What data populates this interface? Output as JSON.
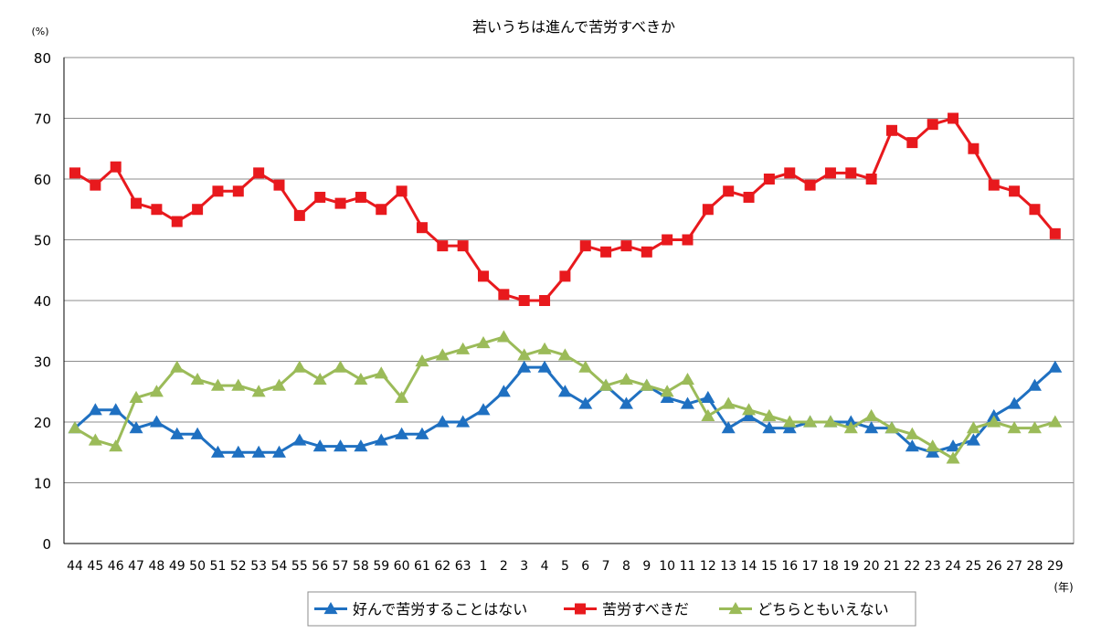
{
  "chart_data": {
    "type": "line",
    "title": "若いうちは進んで苦労すべきか",
    "y_unit_label": "(%)",
    "x_unit_label": "(年)",
    "xlabel": "",
    "ylabel": "",
    "ylim": [
      0,
      80
    ],
    "yticks": [
      0,
      10,
      20,
      30,
      40,
      50,
      60,
      70,
      80
    ],
    "grid": true,
    "legend_position": "bottom",
    "categories": [
      "44",
      "45",
      "46",
      "47",
      "48",
      "49",
      "50",
      "51",
      "52",
      "53",
      "54",
      "55",
      "56",
      "57",
      "58",
      "59",
      "60",
      "61",
      "62",
      "63",
      "1",
      "2",
      "3",
      "4",
      "5",
      "6",
      "7",
      "8",
      "9",
      "10",
      "11",
      "12",
      "13",
      "14",
      "15",
      "16",
      "17",
      "18",
      "19",
      "20",
      "21",
      "22",
      "23",
      "24",
      "25",
      "26",
      "27",
      "28",
      "29"
    ],
    "series": [
      {
        "name": "好んで苦労することはない",
        "color": "#1F70C1",
        "marker": "triangle",
        "values": [
          19,
          22,
          22,
          19,
          20,
          18,
          18,
          15,
          15,
          15,
          15,
          17,
          16,
          16,
          16,
          17,
          18,
          18,
          20,
          20,
          22,
          25,
          29,
          29,
          25,
          23,
          26,
          23,
          26,
          24,
          23,
          24,
          19,
          21,
          19,
          19,
          20,
          20,
          20,
          19,
          19,
          16,
          15,
          16,
          17,
          21,
          23,
          26,
          29
        ]
      },
      {
        "name": "苦労すべきだ",
        "color": "#E8191D",
        "marker": "square",
        "values": [
          61,
          59,
          62,
          56,
          55,
          53,
          55,
          58,
          58,
          61,
          59,
          54,
          57,
          56,
          57,
          55,
          58,
          52,
          49,
          49,
          44,
          41,
          40,
          40,
          44,
          49,
          48,
          49,
          48,
          50,
          50,
          55,
          58,
          57,
          60,
          61,
          59,
          61,
          61,
          60,
          68,
          66,
          69,
          70,
          65,
          59,
          58,
          55,
          51
        ]
      },
      {
        "name": "どちらともいえない",
        "color": "#9BBB59",
        "marker": "triangle",
        "values": [
          19,
          17,
          16,
          24,
          25,
          29,
          27,
          26,
          26,
          25,
          26,
          29,
          27,
          29,
          27,
          28,
          24,
          30,
          31,
          32,
          33,
          34,
          31,
          32,
          31,
          29,
          26,
          27,
          26,
          25,
          27,
          21,
          23,
          22,
          21,
          20,
          20,
          20,
          19,
          21,
          19,
          18,
          16,
          14,
          19,
          20,
          19,
          19,
          20
        ]
      }
    ]
  }
}
